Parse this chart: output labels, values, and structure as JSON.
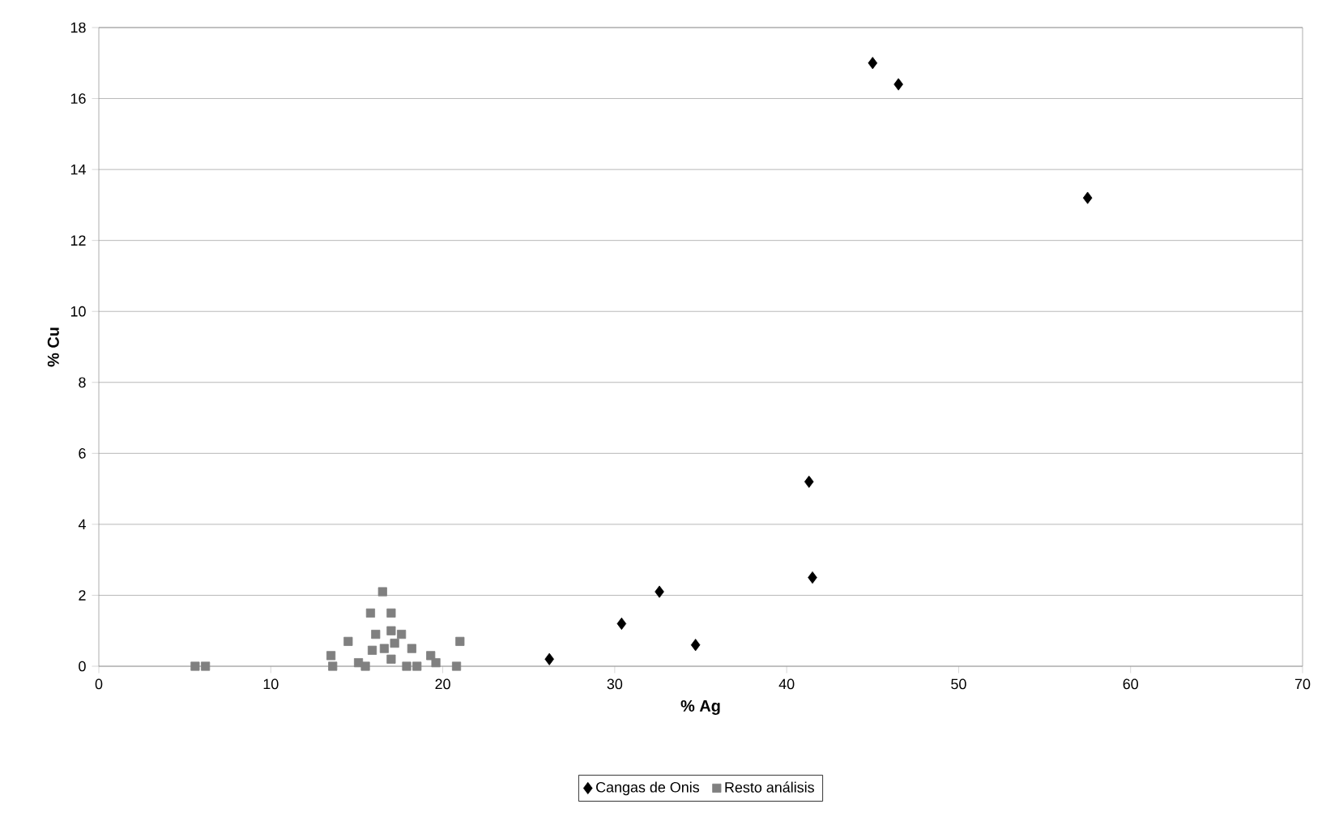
{
  "chart_data": {
    "type": "scatter",
    "xlabel": "% Ag",
    "ylabel": "% Cu",
    "xlim": [
      0,
      70
    ],
    "xticks": [
      0,
      10,
      20,
      30,
      40,
      50,
      60,
      70
    ],
    "ylim": [
      0,
      18
    ],
    "yticks": [
      0,
      2,
      4,
      6,
      8,
      10,
      12,
      14,
      16,
      18
    ],
    "grid": "y",
    "legend": "bottom",
    "series": [
      {
        "name": "Cangas de Onis",
        "color": "#000000",
        "marker": "diamond",
        "x": [
          26.2,
          30.4,
          32.6,
          34.7,
          41.3,
          41.5,
          45.0,
          46.5,
          57.5
        ],
        "values": [
          0.2,
          1.2,
          2.1,
          0.6,
          5.2,
          2.5,
          17.0,
          16.4,
          13.2
        ]
      },
      {
        "name": "Resto análisis",
        "color": "#808080",
        "marker": "square",
        "x": [
          5.6,
          6.2,
          16.5,
          15.8,
          17.0,
          14.5,
          13.5,
          13.6,
          21.0,
          20.8,
          16.1,
          17.6,
          18.2,
          19.3,
          15.1,
          15.9,
          17.0,
          18.5,
          17.9,
          15.5,
          17.2,
          19.6,
          17.0,
          16.6
        ],
        "values": [
          0,
          0,
          2.1,
          1.5,
          1.5,
          0.7,
          0.3,
          0,
          0.7,
          0,
          0.9,
          0.9,
          0.5,
          0.3,
          0.1,
          0.45,
          0.2,
          0,
          0,
          0,
          0.65,
          0.1,
          1.0,
          0.5
        ]
      }
    ]
  }
}
